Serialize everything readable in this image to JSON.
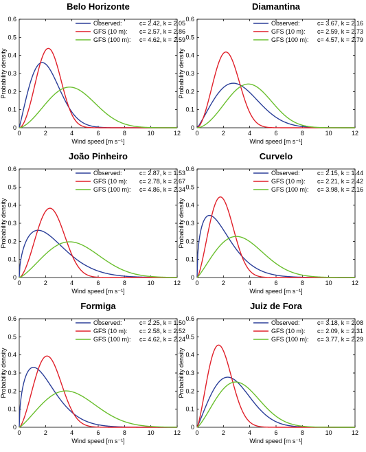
{
  "chart_data": [
    {
      "type": "line",
      "title": "Belo Horizonte",
      "xlabel": "Wind speed [m s⁻¹]",
      "ylabel": "Probability density",
      "xlim": [
        0,
        12
      ],
      "ylim": [
        0,
        0.6
      ],
      "xticks": [
        "0",
        "2",
        "4",
        "6",
        "8",
        "10",
        "12"
      ],
      "yticks": [
        "0",
        "0.1",
        "0.2",
        "0.3",
        "0.4",
        "0.5",
        "0.6"
      ],
      "legend_position": "top-right",
      "series": [
        {
          "name": "Observed:",
          "params": "c= 2.42, k = 2.05",
          "c": 2.42,
          "k": 2.05,
          "color": "#2b3f99"
        },
        {
          "name": "GFS (10 m):",
          "params": "c= 2.57, k = 2.86",
          "c": 2.57,
          "k": 2.86,
          "color": "#e0202a"
        },
        {
          "name": "GFS (100 m):",
          "params": "c= 4.62, k = 2.59",
          "c": 4.62,
          "k": 2.59,
          "color": "#6abf2e"
        }
      ]
    },
    {
      "type": "line",
      "title": "Diamantina",
      "xlabel": "Wind speed [m s⁻¹]",
      "ylabel": "Probability density",
      "xlim": [
        0,
        12
      ],
      "ylim": [
        0,
        0.6
      ],
      "xticks": [
        "0",
        "2",
        "4",
        "6",
        "8",
        "10",
        "12"
      ],
      "yticks": [
        "0",
        "0.1",
        "0.2",
        "0.3",
        "0.4",
        "0.5",
        "0.6"
      ],
      "legend_position": "top-right",
      "series": [
        {
          "name": "Observed:",
          "params": "c= 3.67, k = 2.16",
          "c": 3.67,
          "k": 2.16,
          "color": "#2b3f99"
        },
        {
          "name": "GFS (10 m):",
          "params": "c= 2.59, k = 2.73",
          "c": 2.59,
          "k": 2.73,
          "color": "#e0202a"
        },
        {
          "name": "GFS (100 m):",
          "params": "c= 4.57, k = 2.79",
          "c": 4.57,
          "k": 2.79,
          "color": "#6abf2e"
        }
      ]
    },
    {
      "type": "line",
      "title": "João Pinheiro",
      "xlabel": "Wind speed [m s⁻¹]",
      "ylabel": "Probability density",
      "xlim": [
        0,
        12
      ],
      "ylim": [
        0,
        0.6
      ],
      "xticks": [
        "0",
        "2",
        "4",
        "6",
        "8",
        "10",
        "12"
      ],
      "yticks": [
        "0",
        "0.1",
        "0.2",
        "0.3",
        "0.4",
        "0.5",
        "0.6"
      ],
      "legend_position": "top-right",
      "series": [
        {
          "name": "Observed:",
          "params": "c= 2.87, k = 1.53",
          "c": 2.87,
          "k": 1.53,
          "color": "#2b3f99"
        },
        {
          "name": "GFS (10 m):",
          "params": "c= 2.78, k = 2.67",
          "c": 2.78,
          "k": 2.67,
          "color": "#e0202a"
        },
        {
          "name": "GFS (100 m):",
          "params": "c= 4.86, k = 2.34",
          "c": 4.86,
          "k": 2.34,
          "color": "#6abf2e"
        }
      ]
    },
    {
      "type": "line",
      "title": "Curvelo",
      "xlabel": "Wind speed [m s⁻¹]",
      "ylabel": "Probability density",
      "xlim": [
        0,
        12
      ],
      "ylim": [
        0,
        0.6
      ],
      "xticks": [
        "0",
        "2",
        "4",
        "6",
        "8",
        "10",
        "12"
      ],
      "yticks": [
        "0",
        "0.1",
        "0.2",
        "0.3",
        "0.4",
        "0.5",
        "0.6"
      ],
      "legend_position": "top-right",
      "series": [
        {
          "name": "Observed:",
          "params": "c= 2.15, k = 1.44",
          "c": 2.15,
          "k": 1.44,
          "color": "#2b3f99"
        },
        {
          "name": "GFS (10 m):",
          "params": "c= 2.21, k = 2.42",
          "c": 2.21,
          "k": 2.42,
          "color": "#e0202a"
        },
        {
          "name": "GFS (100 m):",
          "params": "c= 3.98, k = 2.16",
          "c": 3.98,
          "k": 2.16,
          "color": "#6abf2e"
        }
      ]
    },
    {
      "type": "line",
      "title": "Formiga",
      "xlabel": "Wind speed [m s⁻¹]",
      "ylabel": "Probability density",
      "xlim": [
        0,
        12
      ],
      "ylim": [
        0,
        0.6
      ],
      "xticks": [
        "0",
        "2",
        "4",
        "6",
        "8",
        "10",
        "12"
      ],
      "yticks": [
        "0",
        "0.1",
        "0.2",
        "0.3",
        "0.4",
        "0.5",
        "0.6"
      ],
      "legend_position": "top-right",
      "series": [
        {
          "name": "Observed:",
          "params": "c= 2.25, k = 1.50",
          "c": 2.25,
          "k": 1.5,
          "color": "#2b3f99"
        },
        {
          "name": "GFS (10 m):",
          "params": "c= 2.58, k = 2.52",
          "c": 2.58,
          "k": 2.52,
          "color": "#e0202a"
        },
        {
          "name": "GFS (100 m):",
          "params": "c= 4.62, k = 2.24",
          "c": 4.62,
          "k": 2.24,
          "color": "#6abf2e"
        }
      ]
    },
    {
      "type": "line",
      "title": "Juiz de Fora",
      "xlabel": "Wind speed [m s⁻¹]",
      "ylabel": "Probability density",
      "xlim": [
        0,
        12
      ],
      "ylim": [
        0,
        0.6
      ],
      "xticks": [
        "0",
        "2",
        "4",
        "6",
        "8",
        "10",
        "12"
      ],
      "yticks": [
        "0",
        "0.1",
        "0.2",
        "0.3",
        "0.4",
        "0.5",
        "0.6"
      ],
      "legend_position": "top-right",
      "series": [
        {
          "name": "Observed:",
          "params": "c= 3.18, k = 2.08",
          "c": 3.18,
          "k": 2.08,
          "color": "#2b3f99"
        },
        {
          "name": "GFS (10 m):",
          "params": "c= 2.09, k = 2.31",
          "c": 2.09,
          "k": 2.31,
          "color": "#e0202a"
        },
        {
          "name": "GFS (100 m):",
          "params": "c= 3.77, k = 2.29",
          "c": 3.77,
          "k": 2.29,
          "color": "#6abf2e"
        }
      ]
    }
  ]
}
